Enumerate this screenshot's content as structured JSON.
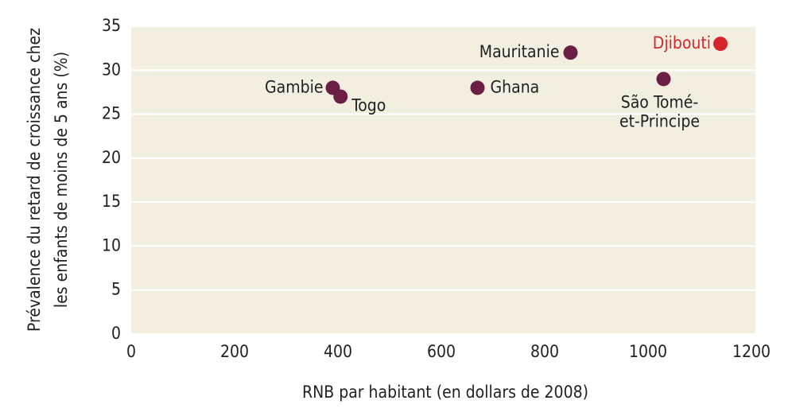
{
  "chart_data": {
    "type": "scatter",
    "xlabel": "RNB par habitant (en dollars de 2008)",
    "ylabel": [
      "Prévalence du retard de croissance chez",
      "les enfants de moins de 5 ans (%)"
    ],
    "xlim": [
      0,
      1200
    ],
    "xticks": [
      0,
      200,
      400,
      600,
      800,
      1000,
      1200
    ],
    "ylim": [
      0,
      35
    ],
    "yticks": [
      0,
      5,
      10,
      15,
      20,
      25,
      30,
      35
    ],
    "grid": true,
    "points": [
      {
        "label": [
          "Gambie"
        ],
        "x": 390,
        "y": 28,
        "color": "#6b1f45"
      },
      {
        "label": [
          "Togo"
        ],
        "x": 405,
        "y": 27,
        "color": "#6b1f45"
      },
      {
        "label": [
          "Ghana"
        ],
        "x": 670,
        "y": 28,
        "color": "#6b1f45"
      },
      {
        "label": [
          "Mauritanie"
        ],
        "x": 850,
        "y": 32,
        "color": "#6b1f45"
      },
      {
        "label": [
          "São Tomé-",
          "et-Principe"
        ],
        "x": 1030,
        "y": 29,
        "color": "#6b1f45"
      },
      {
        "label": [
          "Djibouti"
        ],
        "x": 1140,
        "y": 33,
        "color": "#d7262a"
      }
    ]
  }
}
